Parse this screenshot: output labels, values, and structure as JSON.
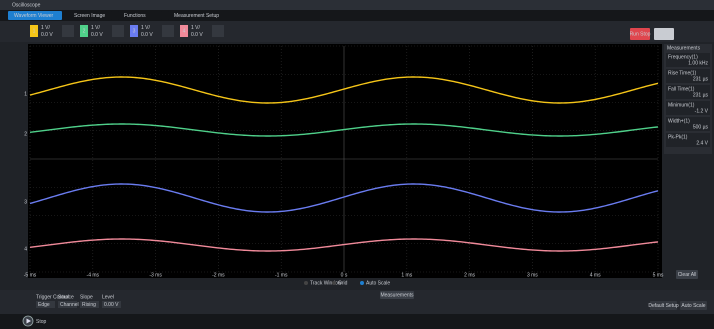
{
  "window": {
    "title": "Oscilloscope"
  },
  "tabs": [
    "Waveform Viewer",
    "Screen Image",
    "Functions",
    "Measurement Setup"
  ],
  "channels": [
    {
      "id": "1",
      "scale": "1 V/",
      "offset": "0.0 V",
      "color": "#f5c518"
    },
    {
      "id": "2",
      "scale": "1 V/",
      "offset": "0.0 V",
      "color": "#4fd08a"
    },
    {
      "id": "3",
      "scale": "1 V/",
      "offset": "0.0 V",
      "color": "#6a7cf0"
    },
    {
      "id": "4",
      "scale": "1 V/",
      "offset": "0.0 V",
      "color": "#f08a9a"
    }
  ],
  "run_stop": "Run Stop",
  "single": "Single",
  "measurements": {
    "title": "Measurements",
    "items": [
      {
        "name": "Frequency(1)",
        "value": "1.00 kHz"
      },
      {
        "name": "Rise Time(1)",
        "value": "231 µs"
      },
      {
        "name": "Fall Time(1)",
        "value": "231 µs"
      },
      {
        "name": "Minimum(1)",
        "value": "-1.2 V"
      },
      {
        "name": "Width+(1)",
        "value": "500 µs"
      },
      {
        "name": "Pk-Pk(1)",
        "value": "2.4 V"
      }
    ]
  },
  "time_labels": [
    "-5 ms",
    "-4 ms",
    "-3 ms",
    "-2 ms",
    "-1 ms",
    "0 s",
    "1 ms",
    "2 ms",
    "3 ms",
    "4 ms",
    "5 ms"
  ],
  "plot_options": [
    "Track Window",
    "Grid",
    "Auto Scale"
  ],
  "clear_all": "Clear All",
  "measurements_button": "Measurements",
  "trigger": {
    "labels": [
      "Trigger Control",
      "Source",
      "Slope",
      "Level"
    ],
    "values": [
      "Edge",
      "Channel 1",
      "Rising",
      "0.00 V"
    ]
  },
  "right_buttons": [
    "Default Setup",
    "Auto Scale"
  ],
  "status": "Stop"
}
